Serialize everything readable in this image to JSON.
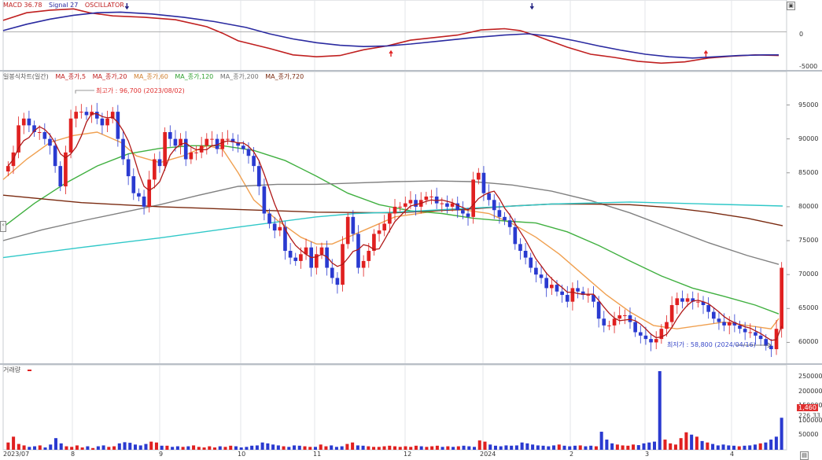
{
  "macd_panel": {
    "legend": {
      "macd": "MACD 36.78",
      "signal": "Signal 27",
      "osc": "OSCILLATOR"
    },
    "y_labels": [
      "0",
      "-5000"
    ],
    "chart_data": {
      "type": "line",
      "series": [
        {
          "name": "MACD",
          "color": "#c02020",
          "points": [
            [
              0,
              1800
            ],
            [
              30,
              3000
            ],
            [
              60,
              3400
            ],
            [
              90,
              3600
            ],
            [
              110,
              3000
            ],
            [
              140,
              2500
            ],
            [
              180,
              2300
            ],
            [
              220,
              1900
            ],
            [
              260,
              800
            ],
            [
              280,
              -200
            ],
            [
              300,
              -1400
            ],
            [
              340,
              -2600
            ],
            [
              370,
              -3600
            ],
            [
              400,
              -3900
            ],
            [
              430,
              -3700
            ],
            [
              460,
              -2800
            ],
            [
              490,
              -2200
            ],
            [
              520,
              -1300
            ],
            [
              550,
              -900
            ],
            [
              580,
              -500
            ],
            [
              610,
              300
            ],
            [
              640,
              500
            ],
            [
              660,
              200
            ],
            [
              680,
              -600
            ],
            [
              700,
              -1500
            ],
            [
              720,
              -2400
            ],
            [
              750,
              -3500
            ],
            [
              780,
              -4000
            ],
            [
              810,
              -4600
            ],
            [
              840,
              -4900
            ],
            [
              870,
              -4700
            ],
            [
              900,
              -4100
            ],
            [
              930,
              -3800
            ],
            [
              960,
              -3600
            ],
            [
              990,
              -3700
            ]
          ]
        },
        {
          "name": "Signal",
          "color": "#2a2aa0",
          "points": [
            [
              0,
              200
            ],
            [
              30,
              1200
            ],
            [
              60,
              2000
            ],
            [
              90,
              2600
            ],
            [
              120,
              3000
            ],
            [
              150,
              3100
            ],
            [
              190,
              2800
            ],
            [
              230,
              2300
            ],
            [
              270,
              1600
            ],
            [
              310,
              700
            ],
            [
              340,
              -300
            ],
            [
              370,
              -1100
            ],
            [
              400,
              -1700
            ],
            [
              430,
              -2100
            ],
            [
              460,
              -2300
            ],
            [
              490,
              -2200
            ],
            [
              520,
              -1900
            ],
            [
              560,
              -1400
            ],
            [
              600,
              -900
            ],
            [
              640,
              -500
            ],
            [
              670,
              -300
            ],
            [
              700,
              -700
            ],
            [
              730,
              -1400
            ],
            [
              760,
              -2200
            ],
            [
              790,
              -2900
            ],
            [
              820,
              -3500
            ],
            [
              850,
              -3900
            ],
            [
              880,
              -4100
            ],
            [
              910,
              -3900
            ],
            [
              940,
              -3700
            ],
            [
              970,
              -3600
            ],
            [
              990,
              -3600
            ]
          ]
        }
      ],
      "signal_markers": [
        {
          "x": 158,
          "dir": "down"
        },
        {
          "x": 495,
          "dir": "up"
        },
        {
          "x": 675,
          "dir": "down"
        },
        {
          "x": 897,
          "dir": "up"
        }
      ],
      "ylim": [
        -5600,
        4500
      ]
    }
  },
  "price_panel": {
    "legend": [
      "일봉식차트(일간)",
      "MA_종가,5",
      "MA_종가,20",
      "MA_종가,60",
      "MA_종가,120",
      "MA_종가,200",
      "MA_종가,720"
    ],
    "legend_colors": [
      "#555555",
      "#c02020",
      "#c02020",
      "#f0a050",
      "#40b040",
      "#808080",
      "#7a2a10",
      "#30c8c8"
    ],
    "y_labels": [
      "95000",
      "90000",
      "85000",
      "80000",
      "75000",
      "70000",
      "65000",
      "60000"
    ],
    "high_note": "최고가 : 96,700 (2023/08/02)",
    "low_note": "최저가 : 58,800 (2024/04/16)",
    "chart_data": {
      "type": "candlestick",
      "ylim": [
        57500,
        99000
      ],
      "closes": [
        86000,
        88000,
        92000,
        93000,
        92000,
        91000,
        91000,
        90000,
        89000,
        86000,
        83000,
        88000,
        93000,
        94000,
        94000,
        93500,
        94000,
        93000,
        92000,
        93000,
        94000,
        90000,
        87000,
        84500,
        82000,
        81500,
        80000,
        84000,
        87000,
        86000,
        91000,
        90000,
        89000,
        90000,
        87000,
        88000,
        88000,
        89000,
        90000,
        90000,
        88500,
        90000,
        90000,
        89500,
        89000,
        88500,
        87500,
        86000,
        83000,
        79000,
        77500,
        76500,
        77000,
        73500,
        72500,
        72000,
        73000,
        74000,
        71000,
        73000,
        74000,
        71000,
        69500,
        68500,
        74500,
        78500,
        76000,
        71000,
        72000,
        73500,
        76000,
        76500,
        77500,
        79000,
        80000,
        80000,
        80500,
        81000,
        80000,
        81000,
        81500,
        81500,
        80500,
        80500,
        80000,
        80500,
        79500,
        79000,
        78500,
        84000,
        85000,
        82000,
        81000,
        79500,
        78500,
        78000,
        77000,
        74500,
        73500,
        72500,
        71000,
        70000,
        69500,
        68000,
        68500,
        67500,
        67000,
        66000,
        68000,
        67500,
        67000,
        67000,
        66000,
        63500,
        62500,
        62500,
        63500,
        64000,
        64000,
        63000,
        61500,
        61000,
        60500,
        60000,
        60500,
        62000,
        63000,
        65500,
        66500,
        66000,
        66500,
        66000,
        66000,
        65500,
        64500,
        63500,
        63000,
        62500,
        63000,
        62500,
        62000,
        61500,
        61500,
        61000,
        60500,
        59500,
        59000,
        62000,
        71000
      ],
      "series": [
        {
          "name": "MA_종가,60",
          "color": "#f0a050",
          "points": [
            [
              0,
              84000
            ],
            [
              30,
              87000
            ],
            [
              60,
              89500
            ],
            [
              90,
              90500
            ],
            [
              120,
              91000
            ],
            [
              150,
              89500
            ],
            [
              170,
              87500
            ],
            [
              200,
              86500
            ],
            [
              230,
              87500
            ],
            [
              260,
              89000
            ],
            [
              280,
              88500
            ],
            [
              300,
              85000
            ],
            [
              320,
              81000
            ],
            [
              350,
              78000
            ],
            [
              380,
              75500
            ],
            [
              400,
              74500
            ],
            [
              420,
              74500
            ],
            [
              440,
              75500
            ],
            [
              470,
              77000
            ],
            [
              500,
              78500
            ],
            [
              530,
              79000
            ],
            [
              560,
              79500
            ],
            [
              590,
              79500
            ],
            [
              620,
              79000
            ],
            [
              650,
              77500
            ],
            [
              680,
              75500
            ],
            [
              710,
              73000
            ],
            [
              740,
              70000
            ],
            [
              770,
              67000
            ],
            [
              800,
              64500
            ],
            [
              830,
              62500
            ],
            [
              860,
              62000
            ],
            [
              890,
              62500
            ],
            [
              920,
              63000
            ],
            [
              950,
              62500
            ],
            [
              980,
              62000
            ],
            [
              990,
              63500
            ]
          ]
        },
        {
          "name": "MA_종가,120",
          "color": "#40b040",
          "points": [
            [
              0,
              77000
            ],
            [
              40,
              80500
            ],
            [
              80,
              83500
            ],
            [
              120,
              86000
            ],
            [
              160,
              87800
            ],
            [
              200,
              88600
            ],
            [
              240,
              89000
            ],
            [
              280,
              89000
            ],
            [
              320,
              88300
            ],
            [
              360,
              86800
            ],
            [
              400,
              84500
            ],
            [
              440,
              82000
            ],
            [
              480,
              80300
            ],
            [
              520,
              79400
            ],
            [
              560,
              79000
            ],
            [
              600,
              78300
            ],
            [
              640,
              77900
            ],
            [
              680,
              77600
            ],
            [
              720,
              76300
            ],
            [
              760,
              74300
            ],
            [
              800,
              72000
            ],
            [
              840,
              69800
            ],
            [
              880,
              68000
            ],
            [
              920,
              66800
            ],
            [
              960,
              65500
            ],
            [
              990,
              64200
            ]
          ]
        },
        {
          "name": "MA_종가,200",
          "color": "#808080",
          "points": [
            [
              0,
              75000
            ],
            [
              50,
              76600
            ],
            [
              100,
              77900
            ],
            [
              150,
              79100
            ],
            [
              200,
              80300
            ],
            [
              250,
              81700
            ],
            [
              300,
              83000
            ],
            [
              350,
              83300
            ],
            [
              400,
              83300
            ],
            [
              450,
              83500
            ],
            [
              500,
              83700
            ],
            [
              550,
              83800
            ],
            [
              600,
              83700
            ],
            [
              650,
              83200
            ],
            [
              700,
              82300
            ],
            [
              750,
              80900
            ],
            [
              800,
              79100
            ],
            [
              850,
              76900
            ],
            [
              900,
              74700
            ],
            [
              950,
              72800
            ],
            [
              990,
              71500
            ]
          ]
        },
        {
          "name": "MA_종가,720",
          "color": "#7a2a10",
          "points": [
            [
              0,
              81700
            ],
            [
              100,
              80600
            ],
            [
              200,
              80000
            ],
            [
              300,
              79600
            ],
            [
              400,
              79200
            ],
            [
              500,
              79100
            ],
            [
              600,
              79700
            ],
            [
              650,
              80100
            ],
            [
              700,
              80400
            ],
            [
              750,
              80400
            ],
            [
              800,
              80300
            ],
            [
              850,
              79900
            ],
            [
              900,
              79200
            ],
            [
              950,
              78300
            ],
            [
              995,
              77200
            ]
          ]
        },
        {
          "name": "MA_종가,5",
          "color": "#30c8c8",
          "points": [
            [
              0,
              72500
            ],
            [
              100,
              74000
            ],
            [
              200,
              75400
            ],
            [
              300,
              77000
            ],
            [
              400,
              78500
            ],
            [
              450,
              79000
            ],
            [
              500,
              79200
            ],
            [
              600,
              79800
            ],
            [
              700,
              80400
            ],
            [
              800,
              80700
            ],
            [
              900,
              80400
            ],
            [
              995,
              80100
            ]
          ]
        }
      ]
    }
  },
  "volume_panel": {
    "legend": "거래량",
    "y_labels": [
      "250000",
      "200000",
      "150000",
      "100000",
      "50000"
    ],
    "last_tags": [
      "1,460",
      "226 33"
    ],
    "chart_data": {
      "type": "bar",
      "ylim": [
        0,
        270000
      ],
      "values": [
        25000,
        45000,
        20000,
        15000,
        10000,
        12000,
        15000,
        8000,
        18000,
        40000,
        22000,
        12000,
        10000,
        15000,
        8000,
        12000,
        6000,
        12000,
        15000,
        10000,
        12000,
        22000,
        26000,
        24000,
        18000,
        15000,
        20000,
        28000,
        25000,
        14000,
        14000,
        10000,
        12000,
        10000,
        12000,
        15000,
        10000,
        8000,
        12000,
        8000,
        12000,
        10000,
        14000,
        12000,
        8000,
        10000,
        14000,
        15000,
        25000,
        22000,
        18000,
        15000,
        12000,
        10000,
        15000,
        14000,
        12000,
        10000,
        10000,
        18000,
        12000,
        15000,
        10000,
        12000,
        20000,
        25000,
        15000,
        14000,
        12000,
        10000,
        10000,
        12000,
        14000,
        12000,
        10000,
        12000,
        10000,
        14000,
        12000,
        10000,
        12000,
        14000,
        10000,
        12000,
        10000,
        12000,
        14000,
        12000,
        10000,
        32000,
        28000,
        18000,
        14000,
        12000,
        15000,
        14000,
        15000,
        25000,
        22000,
        18000,
        15000,
        14000,
        12000,
        15000,
        18000,
        14000,
        12000,
        14000,
        15000,
        12000,
        14000,
        12000,
        62000,
        35000,
        22000,
        18000,
        15000,
        14000,
        18000,
        16000,
        22000,
        25000,
        28000,
        270000,
        35000,
        22000,
        18000,
        40000,
        60000,
        52000,
        45000,
        30000,
        25000,
        20000,
        15000,
        18000,
        15000,
        14000,
        12000,
        14000,
        15000,
        18000,
        22000,
        25000,
        35000,
        45000,
        110000
      ]
    },
    "x_labels": [
      "2023/07",
      "8",
      "9",
      "10",
      "11",
      "12",
      "2024",
      "2",
      "3",
      "4"
    ]
  }
}
